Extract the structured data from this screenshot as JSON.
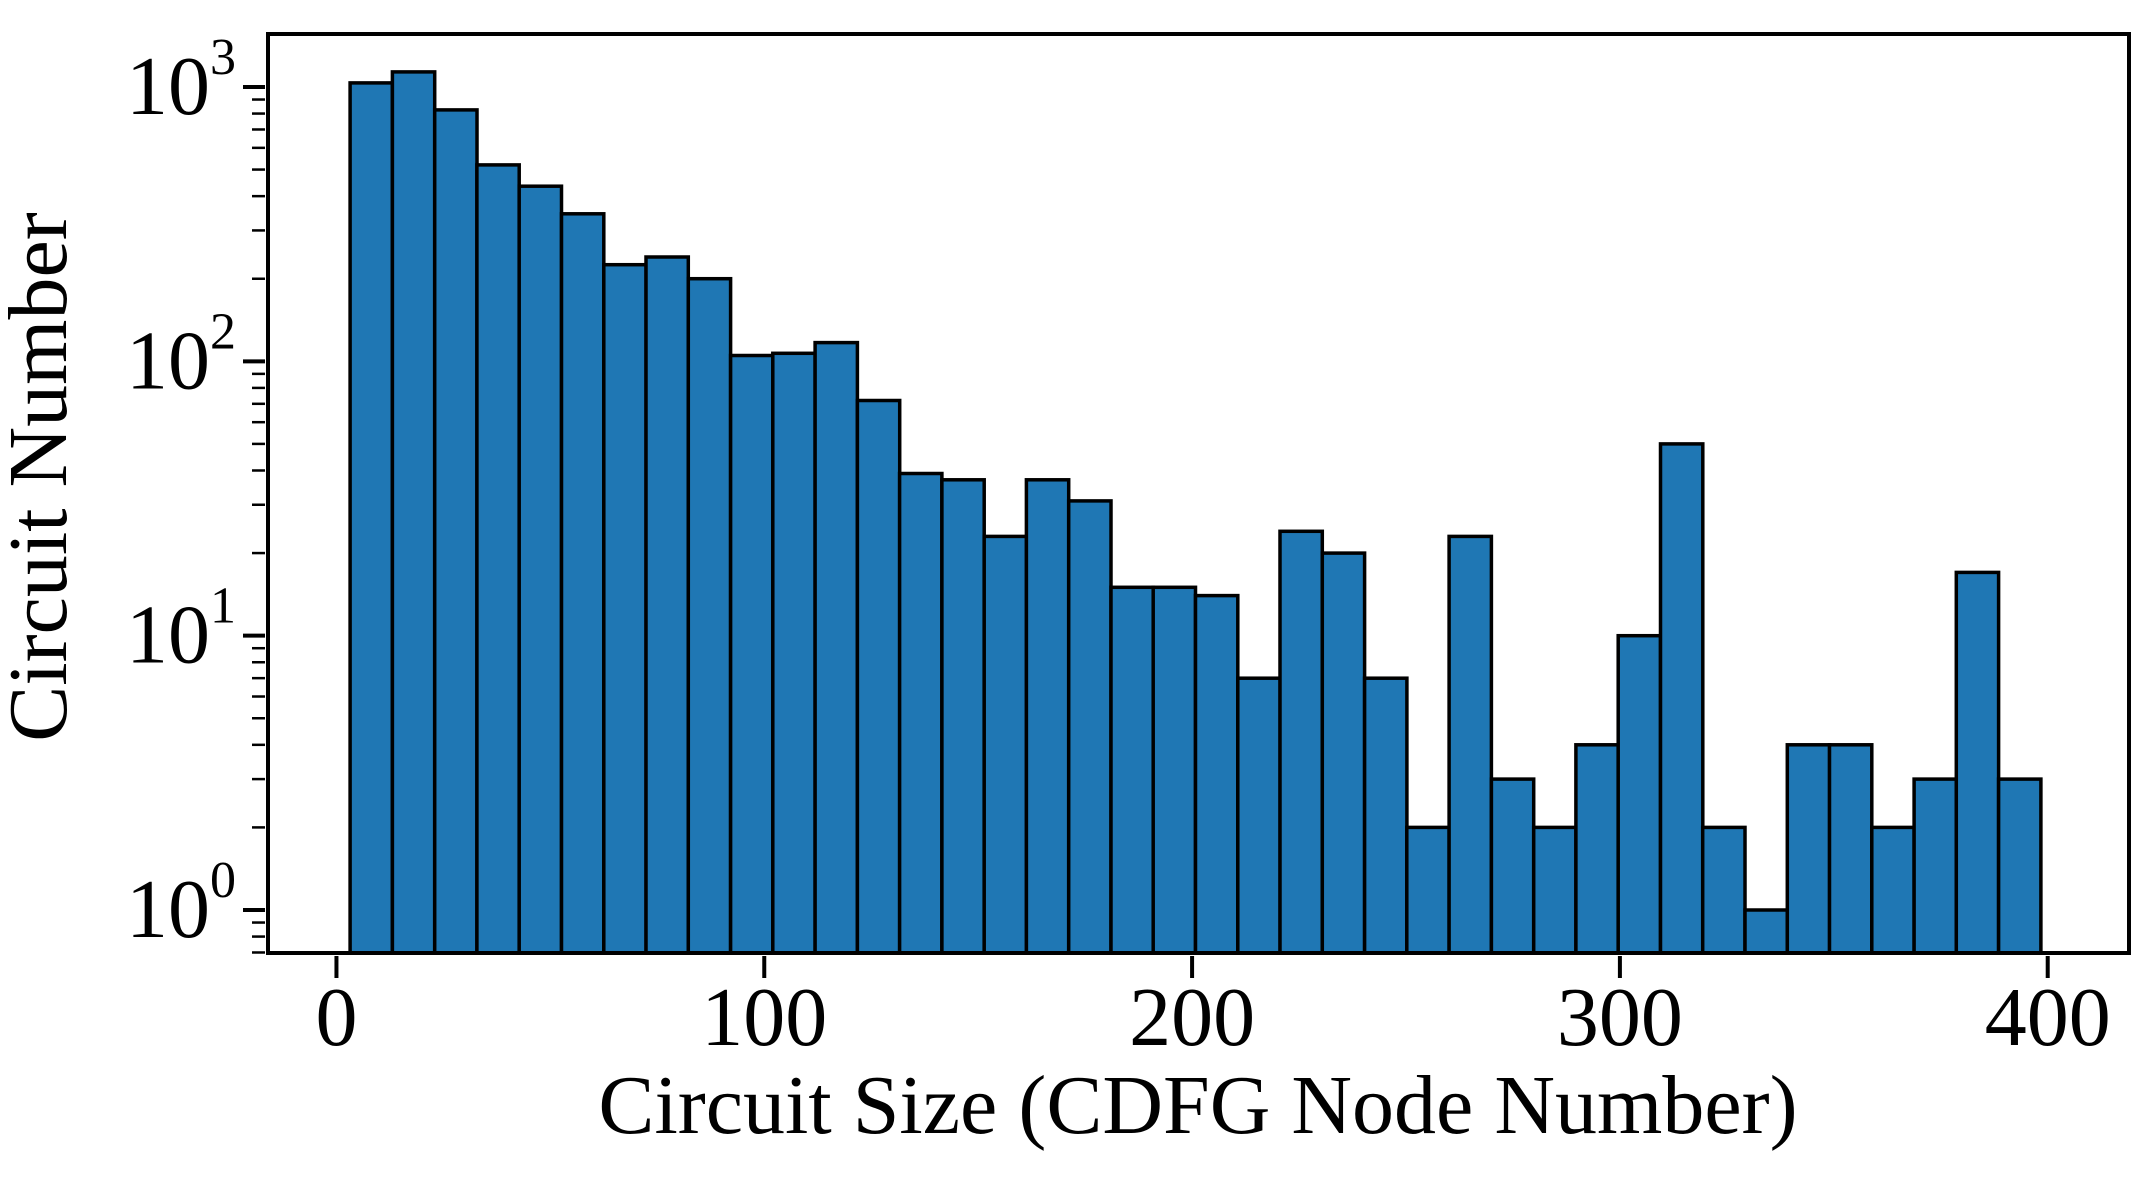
{
  "chart_data": {
    "type": "bar",
    "subtype": "histogram",
    "title": "",
    "xlabel": "Circuit Size (CDFG Node Number)",
    "ylabel": "Circuit Number",
    "x_scale": "linear",
    "y_scale": "log",
    "xlim": [
      -16,
      419
    ],
    "ylim": [
      0.697,
      1560
    ],
    "xticks": [
      0,
      100,
      200,
      300,
      400
    ],
    "ytick_exponents": [
      0,
      1,
      2,
      3
    ],
    "y_minor_subs": [
      2,
      3,
      4,
      5,
      6,
      7,
      8,
      9
    ],
    "grid": false,
    "legend": null,
    "bar_color": "#1f77b4",
    "bar_edge_color": "#000000",
    "axis_color": "#000000",
    "background_color": "#ffffff",
    "bins": {
      "start": 3.2,
      "width": 9.88,
      "count": 40
    },
    "counts": [
      1035,
      1135,
      825,
      520,
      435,
      345,
      225,
      240,
      200,
      105,
      107,
      117,
      72,
      39,
      37,
      23,
      37,
      31,
      15,
      15,
      14,
      7,
      24,
      20,
      7,
      2,
      23,
      3,
      2,
      4,
      10,
      50,
      2,
      1,
      4,
      4,
      2,
      3,
      17,
      3
    ]
  }
}
